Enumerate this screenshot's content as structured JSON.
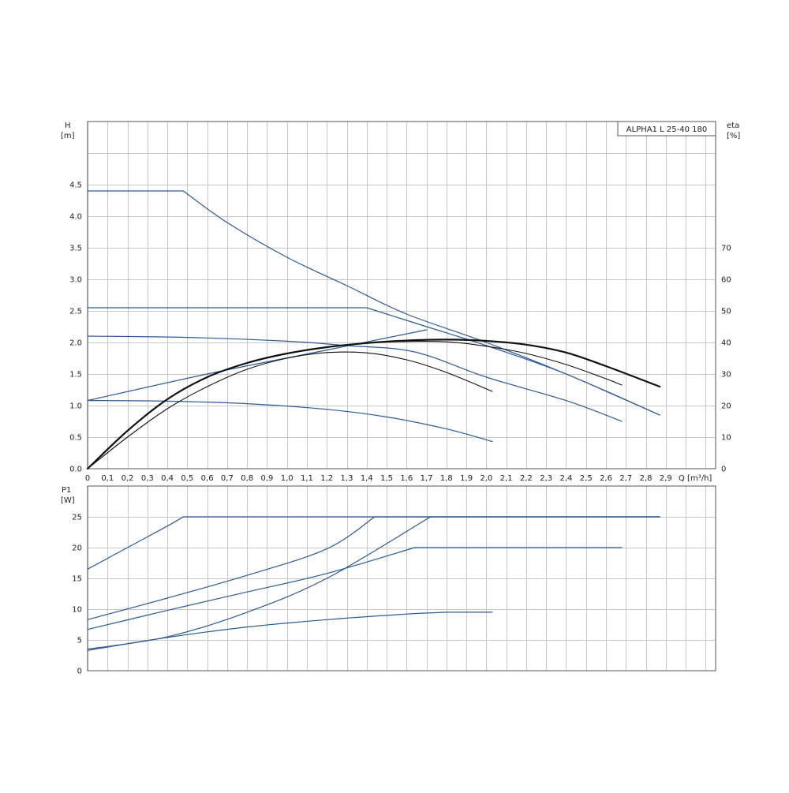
{
  "chart_data": [
    {
      "type": "line",
      "title": "",
      "model_label": "ALPHA1 L 25-40 180",
      "xlabel": "Q [m³/h]",
      "ylabel": "H",
      "ylabel_unit": "[m]",
      "y2label": "eta",
      "y2label_unit": "[%]",
      "xlim": [
        0,
        3.15
      ],
      "ylim": [
        0,
        5.5
      ],
      "y2lim": [
        0,
        110
      ],
      "x_ticks": [
        "0",
        "0,1",
        "0,2",
        "0,3",
        "0,4",
        "0,5",
        "0,6",
        "0,7",
        "0,8",
        "0,9",
        "1,0",
        "1,1",
        "1,2",
        "1,3",
        "1,4",
        "1,5",
        "1,6",
        "1,7",
        "1,8",
        "1,9",
        "2,0",
        "2,1",
        "2,2",
        "2,3",
        "2,4",
        "2,5",
        "2,6",
        "2,7",
        "2,8",
        "2,9"
      ],
      "y_ticks": [
        "0.0",
        "0.5",
        "1.0",
        "1.5",
        "2.0",
        "2.5",
        "3.0",
        "3.5",
        "4.0",
        "4.5"
      ],
      "y2_ticks": [
        "0",
        "10",
        "20",
        "30",
        "40",
        "50",
        "60",
        "70"
      ],
      "grid": true,
      "series": [
        {
          "axis": "left",
          "color": "#2a5a9a",
          "width": 1.2,
          "x": [
            0,
            0.48,
            0.7,
            1.0,
            1.3,
            1.6,
            2.0,
            2.4,
            2.87
          ],
          "y": [
            4.4,
            4.4,
            3.9,
            3.35,
            2.9,
            2.45,
            2.0,
            1.5,
            0.85
          ]
        },
        {
          "axis": "left",
          "color": "#2a5a9a",
          "width": 1.2,
          "x": [
            0,
            1.4,
            1.7,
            2.0,
            2.4,
            2.87
          ],
          "y": [
            2.55,
            2.55,
            2.25,
            1.95,
            1.5,
            0.85
          ]
        },
        {
          "axis": "left",
          "color": "#2a5a9a",
          "width": 1.2,
          "x": [
            0,
            0.5,
            1.0,
            1.3,
            1.64,
            2.0,
            2.4,
            2.68
          ],
          "y": [
            2.1,
            2.08,
            2.02,
            1.95,
            1.85,
            1.45,
            1.08,
            0.75
          ]
        },
        {
          "axis": "left",
          "color": "#2a5a9a",
          "width": 1.2,
          "x": [
            0,
            0.4,
            0.8,
            1.2,
            1.5,
            1.8,
            2.03
          ],
          "y": [
            1.08,
            1.07,
            1.03,
            0.94,
            0.82,
            0.63,
            0.43
          ]
        },
        {
          "axis": "left",
          "color": "#2a5a9a",
          "width": 1.2,
          "x": [
            0,
            0.6,
            1.2,
            1.7
          ],
          "y": [
            1.08,
            1.5,
            1.88,
            2.2
          ]
        },
        {
          "axis": "right",
          "color": "#111111",
          "width": 2.2,
          "x": [
            0,
            0.2,
            0.4,
            0.6,
            0.8,
            1.0,
            1.2,
            1.4,
            1.6,
            1.8,
            2.0,
            2.2,
            2.4,
            2.6,
            2.87
          ],
          "y": [
            0,
            12,
            22,
            29,
            33.5,
            36.5,
            38.5,
            39.8,
            40.6,
            40.9,
            40.5,
            39.3,
            36.8,
            32.5,
            26
          ]
        },
        {
          "axis": "right",
          "color": "#111111",
          "width": 1.1,
          "x": [
            0,
            0.2,
            0.4,
            0.6,
            0.8,
            1.0,
            1.2,
            1.4,
            1.6,
            1.8,
            2.0,
            2.2,
            2.4,
            2.6,
            2.68
          ],
          "y": [
            0,
            12,
            22,
            29,
            33.5,
            36.5,
            38.5,
            39.8,
            40.3,
            40.2,
            38.8,
            36.5,
            33,
            28.5,
            26.5
          ]
        },
        {
          "axis": "right",
          "color": "#111111",
          "width": 1.1,
          "x": [
            0,
            0.2,
            0.4,
            0.6,
            0.8,
            1.0,
            1.2,
            1.4,
            1.6,
            1.8,
            2.03
          ],
          "y": [
            0,
            10,
            19,
            26,
            31.5,
            35,
            36.8,
            36.7,
            34.5,
            30.5,
            24.5
          ]
        }
      ]
    },
    {
      "type": "line",
      "title": "",
      "xlabel": "",
      "ylabel": "P1",
      "ylabel_unit": "[W]",
      "xlim": [
        0,
        3.15
      ],
      "ylim": [
        0,
        30
      ],
      "y_ticks": [
        "0",
        "5",
        "10",
        "15",
        "20",
        "25"
      ],
      "grid": true,
      "series": [
        {
          "color": "#2a5a9a",
          "width": 1.2,
          "x": [
            0,
            0.2,
            0.4,
            0.48,
            2.87
          ],
          "y": [
            16.5,
            20,
            23.5,
            25,
            25
          ]
        },
        {
          "color": "#2a5a9a",
          "width": 1.2,
          "x": [
            0,
            0.4,
            0.8,
            1.2,
            1.44,
            2.87
          ],
          "y": [
            8.3,
            11.8,
            15.5,
            19.8,
            25,
            25
          ]
        },
        {
          "color": "#2a5a9a",
          "width": 1.2,
          "x": [
            0,
            0.4,
            0.8,
            1.2,
            1.64,
            2.68
          ],
          "y": [
            6.7,
            9.8,
            12.8,
            15.8,
            20,
            20
          ]
        },
        {
          "color": "#2a5a9a",
          "width": 1.2,
          "x": [
            0,
            0.4,
            0.8,
            1.2,
            1.72,
            2.87
          ],
          "y": [
            3.5,
            5.5,
            9.5,
            15,
            25,
            25
          ]
        },
        {
          "color": "#2a5a9a",
          "width": 1.2,
          "x": [
            0,
            0.4,
            0.8,
            1.2,
            1.6,
            1.8,
            2.03
          ],
          "y": [
            3.3,
            5.4,
            7.1,
            8.3,
            9.2,
            9.5,
            9.5
          ]
        }
      ]
    }
  ]
}
